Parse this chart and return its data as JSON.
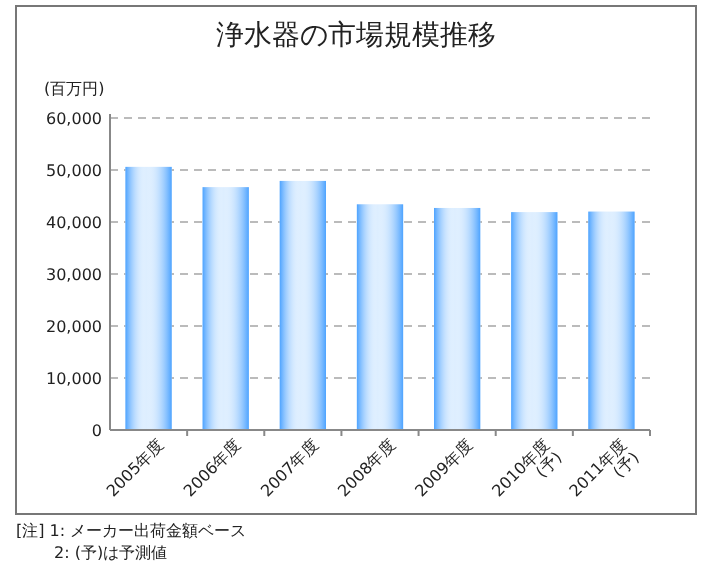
{
  "chart_data": {
    "type": "bar",
    "title": "浄水器の市場規模推移",
    "ylabel": "(百万円)",
    "categories": [
      "2005年度",
      "2006年度",
      "2007年度",
      "2008年度",
      "2009年度",
      "2010年度\n(予)",
      "2011年度\n(予)"
    ],
    "values": [
      50600,
      46700,
      47900,
      43400,
      42700,
      41900,
      42000
    ],
    "color": "#4da3ff",
    "ylim": [
      0,
      60000
    ],
    "yticks": [
      0,
      {
        "value": 10000,
        "label": "10,000"
      },
      {
        "value": 20000,
        "label": "20,000"
      },
      {
        "value": 30000,
        "label": "30,000"
      },
      {
        "value": 40000,
        "label": "40,000"
      },
      {
        "value": 50000,
        "label": "50,000"
      },
      {
        "value": 60000,
        "label": "60,000"
      }
    ],
    "grid": "y",
    "annotations": [
      "[注] 1: メーカー出荷金額ベース",
      "2: (予)は予測値"
    ]
  }
}
